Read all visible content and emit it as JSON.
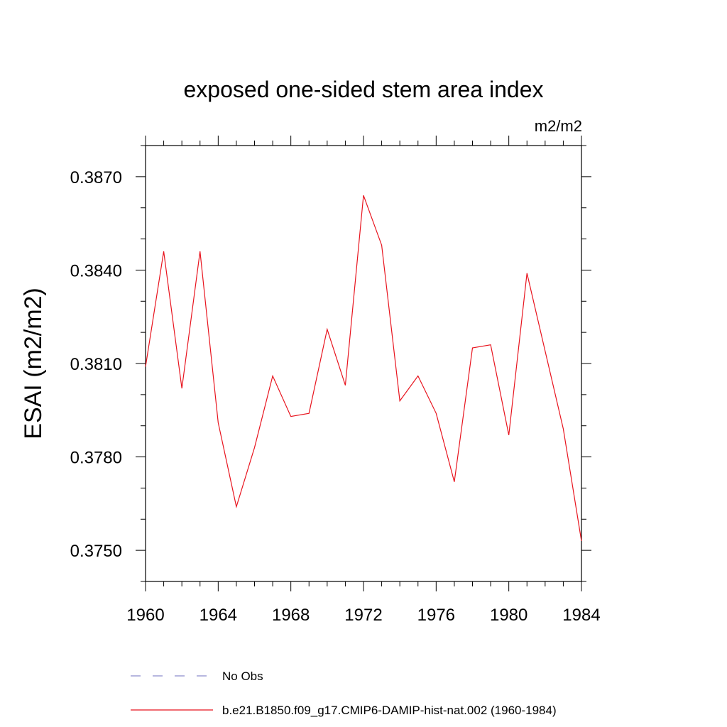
{
  "chart_data": {
    "type": "line",
    "title": "exposed one-sided stem area index",
    "units_label": "m2/m2",
    "ylabel": "ESAI  (m2/m2)",
    "xlabel": "",
    "xlim": [
      1960,
      1984
    ],
    "ylim": [
      0.374,
      0.388
    ],
    "x_ticks": [
      1960,
      1964,
      1968,
      1972,
      1976,
      1980,
      1984
    ],
    "x_tick_labels": [
      "1960",
      "1964",
      "1968",
      "1972",
      "1976",
      "1980",
      "1984"
    ],
    "x_minor_step": 1,
    "y_ticks": [
      0.375,
      0.378,
      0.381,
      0.384,
      0.387
    ],
    "y_tick_labels": [
      "0.3750",
      "0.3780",
      "0.3810",
      "0.3840",
      "0.3870"
    ],
    "y_minor_step": 0.001,
    "grid": false,
    "legend_position": "bottom",
    "legend": [
      {
        "label": "No Obs",
        "color": "#8c8ccc",
        "style": "dashed"
      },
      {
        "label": "b.e21.B1850.f09_g17.CMIP6-DAMIP-hist-nat.002 (1960-1984)",
        "color": "#e8141e",
        "style": "solid"
      }
    ],
    "series": [
      {
        "color": "#e8141e",
        "x": [
          1960,
          1961,
          1962,
          1963,
          1964,
          1965,
          1966,
          1967,
          1968,
          1969,
          1970,
          1971,
          1972,
          1973,
          1974,
          1975,
          1976,
          1977,
          1978,
          1979,
          1980,
          1981,
          1982,
          1983,
          1984
        ],
        "y": [
          0.3809,
          0.3846,
          0.3802,
          0.3846,
          0.3791,
          0.3764,
          0.3783,
          0.3806,
          0.3793,
          0.3794,
          0.3821,
          0.3803,
          0.3864,
          0.3848,
          0.3798,
          0.3806,
          0.3794,
          0.3772,
          0.3815,
          0.3816,
          0.3787,
          0.3839,
          0.3814,
          0.3789,
          0.3753
        ]
      }
    ]
  }
}
